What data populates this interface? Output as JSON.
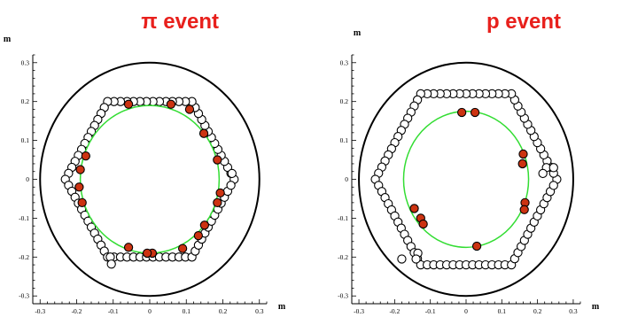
{
  "chart_data": [
    {
      "type": "scatter",
      "title": "π event",
      "xlabel": "m",
      "ylabel": "m",
      "xlim": [
        -0.32,
        0.32
      ],
      "ylim": [
        -0.32,
        0.32
      ],
      "xticks": [
        "-0.3",
        "-0.2",
        "-0.1",
        "0",
        "0.1",
        "0.2",
        "0.3"
      ],
      "yticks": [
        "-0.3",
        "-0.2",
        "-0.1",
        "0",
        "0.1",
        "0.2",
        "0.3"
      ],
      "grid": false,
      "boundary_circle_radius": 0.3,
      "fitted_ring_radius": 0.19,
      "colors": {
        "title": "#e8201c",
        "hit": "#cc3311",
        "fit": "#33dd33",
        "pad": "#ffffff"
      },
      "hexagon_half_width": 0.2,
      "hexagon_pad_spacing": 0.018,
      "extra_pads": [
        [
          0.225,
          0.015
        ],
        [
          -0.108,
          -0.2
        ],
        [
          -0.105,
          -0.218
        ]
      ],
      "hits": [
        [
          -0.058,
          0.193
        ],
        [
          0.058,
          0.193
        ],
        [
          0.109,
          0.18
        ],
        [
          0.148,
          0.118
        ],
        [
          0.185,
          0.05
        ],
        [
          0.193,
          -0.035
        ],
        [
          0.185,
          -0.06
        ],
        [
          0.15,
          -0.118
        ],
        [
          0.133,
          -0.145
        ],
        [
          0.09,
          -0.178
        ],
        [
          0.007,
          -0.19
        ],
        [
          -0.007,
          -0.19
        ],
        [
          -0.058,
          -0.175
        ],
        [
          -0.185,
          -0.06
        ],
        [
          -0.193,
          -0.02
        ],
        [
          -0.19,
          0.025
        ],
        [
          -0.175,
          0.06
        ]
      ]
    },
    {
      "type": "scatter",
      "title": "p event",
      "xlabel": "m",
      "ylabel": "m",
      "xlim": [
        -0.32,
        0.32
      ],
      "ylim": [
        -0.32,
        0.32
      ],
      "xticks": [
        "-0.3",
        "-0.2",
        "-0.1",
        "0",
        "0.1",
        "0.2",
        "0.3"
      ],
      "yticks": [
        "-0.3",
        "-0.2",
        "-0.1",
        "0",
        "0.1",
        "0.2",
        "0.3"
      ],
      "grid": false,
      "boundary_circle_radius": 0.3,
      "fitted_ring_radius": 0.175,
      "colors": {
        "title": "#e8201c",
        "hit": "#cc3311",
        "fit": "#33dd33",
        "pad": "#ffffff"
      },
      "hexagon_half_width": 0.22,
      "hexagon_pad_spacing": 0.018,
      "extra_pads": [
        [
          0.225,
          0.03
        ],
        [
          0.215,
          0.015
        ],
        [
          0.245,
          0.03
        ],
        [
          -0.18,
          -0.205
        ],
        [
          -0.135,
          -0.19
        ],
        [
          -0.14,
          -0.205
        ]
      ],
      "hits": [
        [
          -0.012,
          0.172
        ],
        [
          0.025,
          0.172
        ],
        [
          0.16,
          0.065
        ],
        [
          0.158,
          0.04
        ],
        [
          0.165,
          -0.06
        ],
        [
          0.163,
          -0.078
        ],
        [
          0.03,
          -0.172
        ],
        [
          -0.145,
          -0.075
        ],
        [
          -0.127,
          -0.1
        ],
        [
          -0.12,
          -0.115
        ]
      ]
    }
  ]
}
